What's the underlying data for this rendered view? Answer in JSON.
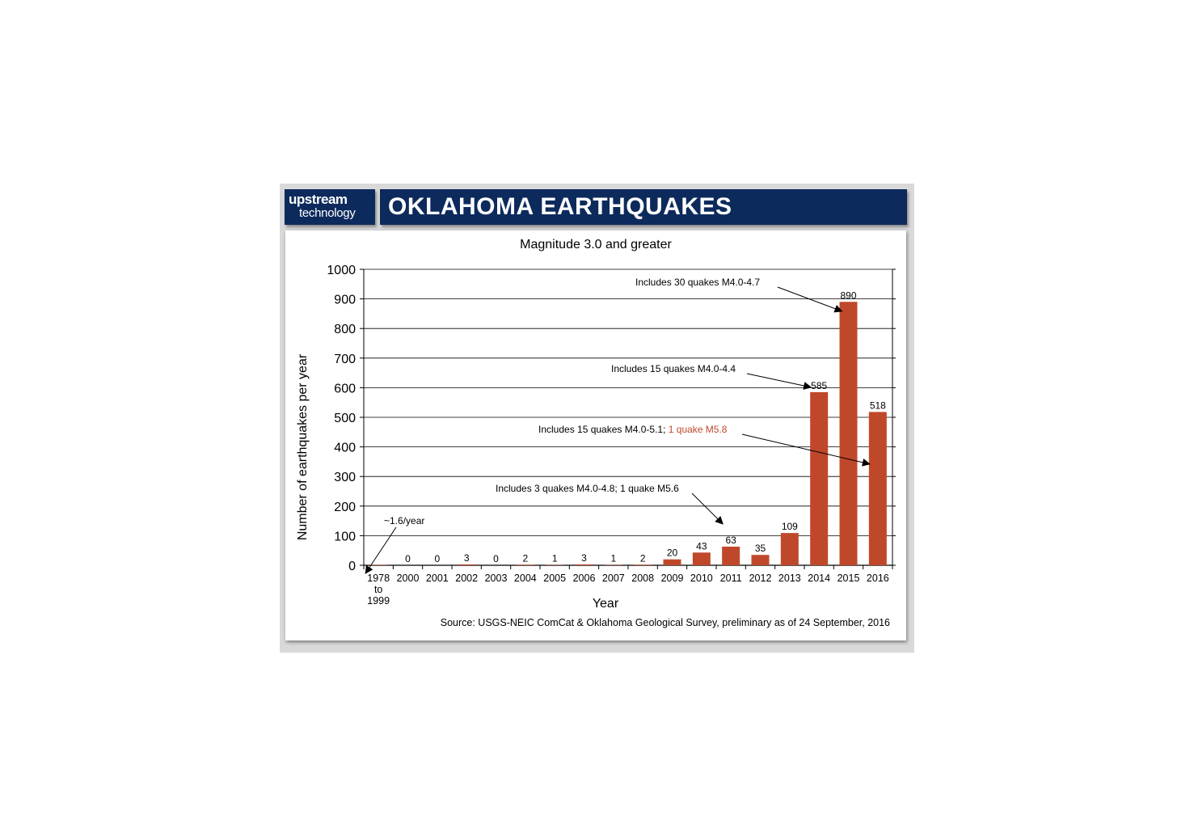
{
  "header": {
    "brand_line1": "upstream",
    "brand_line2": "technology",
    "title": "OKLAHOMA EARTHQUAKES"
  },
  "colors": {
    "navy": "#0d2a5c",
    "bar": "#c0482a",
    "highlight": "#c0482a"
  },
  "chart_data": {
    "type": "bar",
    "title": "Magnitude 3.0 and greater",
    "xlabel": "Year",
    "ylabel": "Number of earthquakes per year",
    "ylim": [
      0,
      1000
    ],
    "yticks": [
      0,
      100,
      200,
      300,
      400,
      500,
      600,
      700,
      800,
      900,
      1000
    ],
    "grid": true,
    "categories": [
      [
        "1978",
        "to",
        "1999"
      ],
      [
        "2000"
      ],
      [
        "2001"
      ],
      [
        "2002"
      ],
      [
        "2003"
      ],
      [
        "2004"
      ],
      [
        "2005"
      ],
      [
        "2006"
      ],
      [
        "2007"
      ],
      [
        "2008"
      ],
      [
        "2009"
      ],
      [
        "2010"
      ],
      [
        "2011"
      ],
      [
        "2012"
      ],
      [
        "2013"
      ],
      [
        "2014"
      ],
      [
        "2015"
      ],
      [
        "2016"
      ]
    ],
    "values": [
      1.6,
      0,
      0,
      3,
      0,
      2,
      1,
      3,
      1,
      2,
      20,
      43,
      63,
      35,
      109,
      585,
      890,
      518
    ],
    "data_labels": [
      "",
      "0",
      "0",
      "3",
      "0",
      "2",
      "1",
      "3",
      "1",
      "2",
      "20",
      "43",
      "63",
      "35",
      "109",
      "585",
      "890",
      "518"
    ],
    "annotations": [
      {
        "category_index": 0,
        "value": 0,
        "parts": [
          {
            "text": "~1.6/year",
            "highlight": false
          }
        ]
      },
      {
        "category_index": 12,
        "value": 63,
        "parts": [
          {
            "text": "Includes 3 quakes M4.0-4.8; 1 quake M5.6",
            "highlight": false
          }
        ]
      },
      {
        "category_index": 17,
        "value": 320,
        "parts": [
          {
            "text": "Includes 15 quakes M4.0-5.1; ",
            "highlight": false
          },
          {
            "text": "1 quake M5.8",
            "highlight": true
          }
        ]
      },
      {
        "category_index": 15,
        "value": 585,
        "parts": [
          {
            "text": "Includes 15 quakes M4.0-4.4",
            "highlight": false
          }
        ]
      },
      {
        "category_index": 16,
        "value": 850,
        "parts": [
          {
            "text": "Includes 30 quakes M4.0-4.7",
            "highlight": false
          }
        ]
      }
    ],
    "source": "Source: USGS-NEIC ComCat & Oklahoma Geological Survey, preliminary as of 24 September, 2016"
  }
}
